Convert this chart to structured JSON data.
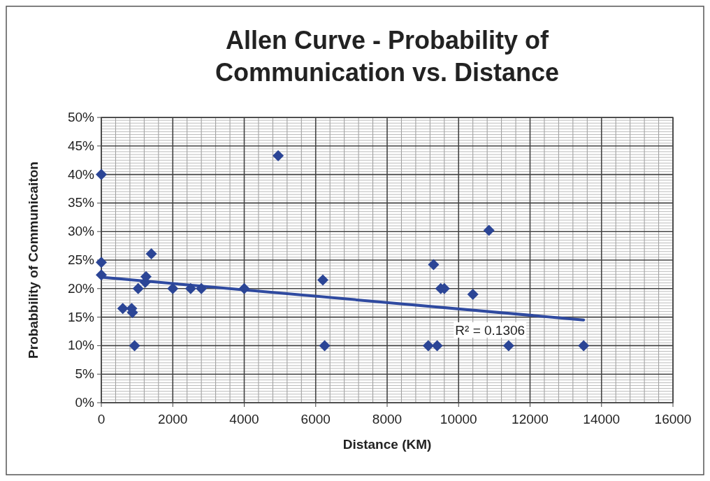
{
  "chart_data": {
    "type": "scatter",
    "title": "Allen Curve - Probability of Communication vs. Distance",
    "xlabel": "Distance (KM)",
    "ylabel": "Probabbility of Communicaiton",
    "marker": "diamond",
    "grid": true,
    "xlim": [
      0,
      16000
    ],
    "xticks": [
      0,
      2000,
      4000,
      6000,
      8000,
      10000,
      12000,
      14000,
      16000
    ],
    "ylim": [
      0,
      50
    ],
    "yticks": [
      {
        "value": 0,
        "label": "0%"
      },
      {
        "value": 5,
        "label": "5%"
      },
      {
        "value": 10,
        "label": "10%"
      },
      {
        "value": 15,
        "label": "15%"
      },
      {
        "value": 20,
        "label": "20%"
      },
      {
        "value": 25,
        "label": "25%"
      },
      {
        "value": 30,
        "label": "30%"
      },
      {
        "value": 35,
        "label": "35%"
      },
      {
        "value": 40,
        "label": "40%"
      },
      {
        "value": 45,
        "label": "45%"
      },
      {
        "value": 50,
        "label": "50%"
      }
    ],
    "annotations": [
      "R² = 0.1306"
    ],
    "series": [
      {
        "color": "#2b4596",
        "x": [
          0,
          0,
          0,
          600,
          850,
          870,
          930,
          1030,
          1230,
          1250,
          1400,
          2000,
          2500,
          2800,
          4000,
          4950,
          6200,
          6250,
          9150,
          9400,
          9300,
          9500,
          9600,
          10400,
          10850,
          11400,
          13500
        ],
        "values": [
          40,
          24.6,
          22.4,
          16.5,
          16.5,
          15.8,
          10,
          20,
          21.1,
          22.1,
          26.1,
          20,
          20,
          20,
          20,
          43.3,
          21.5,
          10,
          10,
          10,
          24.2,
          20,
          20,
          19,
          30.2,
          10,
          10
        ]
      },
      {
        "type": "line",
        "color": "#2f4aa0",
        "marker": "none",
        "x": [
          0,
          13500
        ],
        "values": [
          22,
          14.5
        ]
      }
    ]
  }
}
